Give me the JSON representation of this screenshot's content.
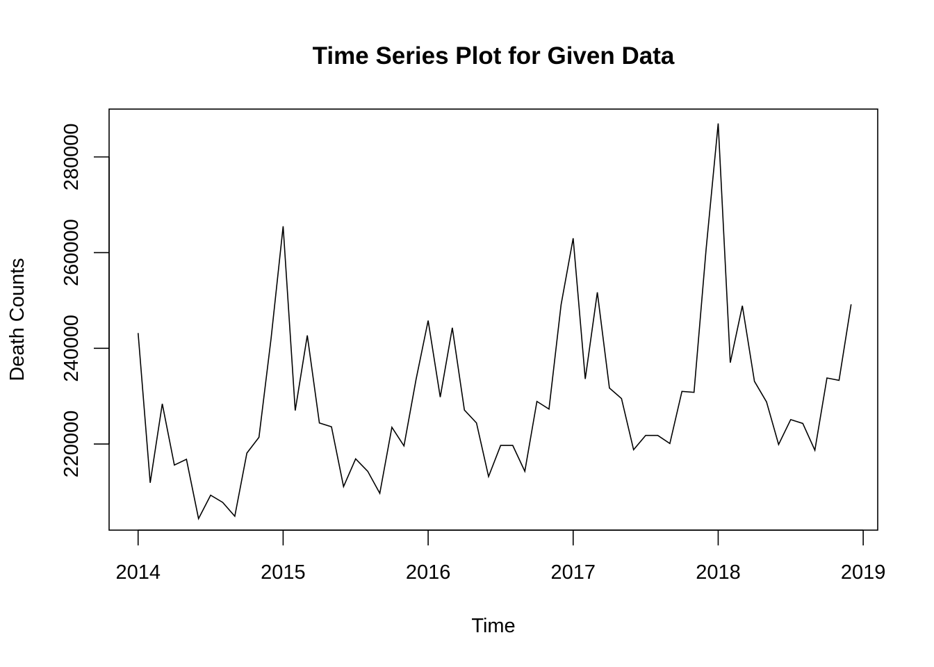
{
  "chart_data": {
    "type": "line",
    "title": "Time Series Plot for Given Data",
    "xlabel": "Time",
    "ylabel": "Death Counts",
    "x_start": 2014,
    "x_frequency": 12,
    "xlim": [
      2013.8,
      2019.1
    ],
    "ylim": [
      202000,
      290000
    ],
    "x_ticks": [
      2014,
      2015,
      2016,
      2017,
      2018,
      2019
    ],
    "y_ticks": [
      220000,
      240000,
      260000,
      280000
    ],
    "grid": false,
    "legend": "none",
    "series": [
      {
        "values": [
          243200,
          211900,
          228400,
          215600,
          216800,
          204400,
          209300,
          207800,
          204900,
          218100,
          221400,
          242000,
          265500,
          227000,
          242700,
          224400,
          223600,
          211100,
          216900,
          214300,
          209700,
          223500,
          219600,
          233500,
          245800,
          229800,
          244300,
          227100,
          224400,
          213200,
          219700,
          219700,
          214300,
          228900,
          227300,
          249100,
          263000,
          233600,
          251700,
          231700,
          229500,
          218800,
          221800,
          221800,
          220100,
          231000,
          230800,
          260700,
          287000,
          237000,
          248900,
          233100,
          228800,
          219900,
          225100,
          224300,
          218700,
          233800,
          233300,
          249200
        ]
      }
    ]
  }
}
